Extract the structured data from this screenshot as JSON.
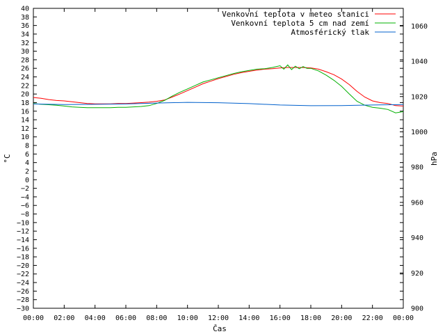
{
  "chart_data": {
    "type": "line",
    "title": "",
    "xlabel": "Čas",
    "ylabel_left": "°C",
    "ylabel_right": "hPa",
    "xlim": [
      0,
      24
    ],
    "ylim_left": [
      -30,
      40
    ],
    "ylim_right": [
      900,
      1070
    ],
    "x_tick_labels": [
      "00:00",
      "02:00",
      "04:00",
      "06:00",
      "08:00",
      "10:00",
      "12:00",
      "14:00",
      "16:00",
      "18:00",
      "20:00",
      "22:00",
      "00:00"
    ],
    "y_left_ticks": [
      40,
      38,
      36,
      34,
      32,
      30,
      28,
      26,
      24,
      22,
      20,
      18,
      16,
      14,
      12,
      10,
      8,
      6,
      4,
      2,
      0,
      -2,
      -4,
      -6,
      -8,
      -10,
      -12,
      -14,
      -16,
      -18,
      -20,
      -22,
      -24,
      -26,
      -28,
      -30
    ],
    "y_right_ticks": [
      900,
      920,
      940,
      960,
      980,
      1000,
      1020,
      1040,
      1060
    ],
    "grid": false,
    "legend_position": "top-right",
    "series": [
      {
        "name": "Venkovní teplota v meteo stanici",
        "color": "#ff0000",
        "axis": "left",
        "x": [
          0,
          0.5,
          1,
          1.5,
          2,
          2.5,
          3,
          3.5,
          4,
          4.5,
          5,
          5.5,
          6,
          6.5,
          7,
          7.5,
          8,
          8.5,
          9,
          9.5,
          10,
          10.5,
          11,
          11.5,
          12,
          12.5,
          13,
          13.5,
          14,
          14.5,
          15,
          15.5,
          16,
          16.5,
          17,
          17.5,
          18,
          18.5,
          19,
          19.5,
          20,
          20.5,
          21,
          21.5,
          22,
          22.5,
          23,
          23.5,
          24
        ],
        "values": [
          19.2,
          19.0,
          18.7,
          18.5,
          18.4,
          18.2,
          18.0,
          17.8,
          17.7,
          17.7,
          17.7,
          17.8,
          17.8,
          17.9,
          18.0,
          18.1,
          18.3,
          18.6,
          19.3,
          20.0,
          20.8,
          21.6,
          22.4,
          23.0,
          23.6,
          24.1,
          24.6,
          25.0,
          25.3,
          25.6,
          25.8,
          25.9,
          26.1,
          26.2,
          26.2,
          26.2,
          26.1,
          25.8,
          25.2,
          24.5,
          23.5,
          22.2,
          20.6,
          19.3,
          18.4,
          18.0,
          17.8,
          17.3,
          17.2
        ]
      },
      {
        "name": "Venkovní teplota 5 cm nad zemí",
        "color": "#00b000",
        "axis": "left",
        "x": [
          0,
          0.5,
          1,
          1.5,
          2,
          2.5,
          3,
          3.5,
          4,
          4.5,
          5,
          5.5,
          6,
          6.5,
          7,
          7.5,
          8,
          8.5,
          9,
          9.5,
          10,
          10.5,
          11,
          11.5,
          12,
          12.5,
          13,
          13.5,
          14,
          14.5,
          15,
          15.5,
          16,
          16.25,
          16.5,
          16.75,
          17,
          17.25,
          17.5,
          17.75,
          18,
          18.5,
          19,
          19.5,
          20,
          20.5,
          21,
          21.5,
          22,
          22.5,
          23,
          23.5,
          24
        ],
        "values": [
          17.8,
          17.6,
          17.5,
          17.4,
          17.2,
          17.0,
          16.9,
          16.8,
          16.8,
          16.8,
          16.8,
          16.9,
          16.9,
          17.0,
          17.1,
          17.3,
          17.8,
          18.5,
          19.5,
          20.4,
          21.2,
          22.0,
          22.8,
          23.3,
          23.8,
          24.3,
          24.8,
          25.2,
          25.5,
          25.8,
          25.9,
          26.2,
          26.6,
          25.8,
          26.8,
          25.7,
          26.5,
          25.9,
          26.4,
          26.0,
          26.0,
          25.4,
          24.4,
          23.2,
          21.8,
          20.0,
          18.3,
          17.4,
          16.9,
          16.7,
          16.4,
          15.6,
          15.9
        ]
      },
      {
        "name": "Atmosférický tlak",
        "color": "#0060cc",
        "axis": "right",
        "x": [
          0,
          2,
          4,
          6,
          8,
          10,
          12,
          14,
          16,
          18,
          20,
          22,
          24
        ],
        "values": [
          1015.8,
          1015.5,
          1015.6,
          1015.8,
          1016.3,
          1016.7,
          1016.5,
          1016.0,
          1015.2,
          1014.8,
          1014.9,
          1015.2,
          1015.5
        ]
      }
    ]
  }
}
